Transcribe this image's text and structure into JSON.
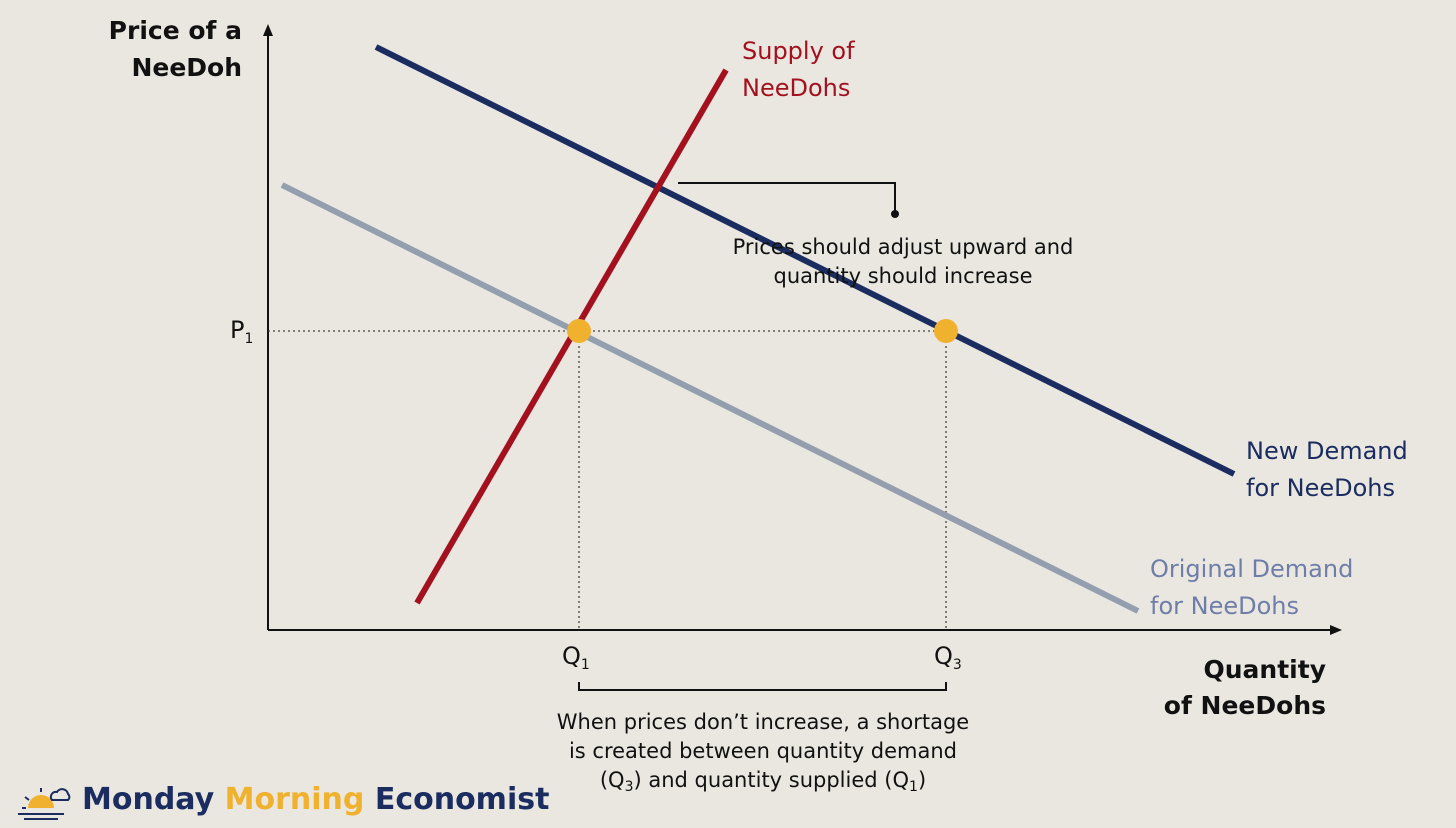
{
  "axes": {
    "y_label": [
      "Price of a",
      "NeeDoh"
    ],
    "x_label": [
      "Quantity",
      "of NeeDohs"
    ]
  },
  "curves": {
    "supply": [
      "Supply of",
      "NeeDohs"
    ],
    "new_demand": [
      "New Demand",
      "for NeeDohs"
    ],
    "original_demand": [
      "Original Demand",
      "for NeeDohs"
    ]
  },
  "markers": {
    "price": {
      "label": "P",
      "sub": "1"
    },
    "q1": {
      "label": "Q",
      "sub": "1"
    },
    "q3": {
      "label": "Q",
      "sub": "3"
    }
  },
  "callout": [
    "Prices should adjust upward and",
    "quantity should increase"
  ],
  "note": {
    "lines": [
      "When prices don’t increase, a shortage",
      "is created between quantity demand"
    ],
    "last_line": [
      "(Q",
      "3",
      ") and quantity supplied (Q",
      "1",
      ")"
    ]
  },
  "brand": [
    "Monday",
    "Morning",
    "Economist"
  ]
}
